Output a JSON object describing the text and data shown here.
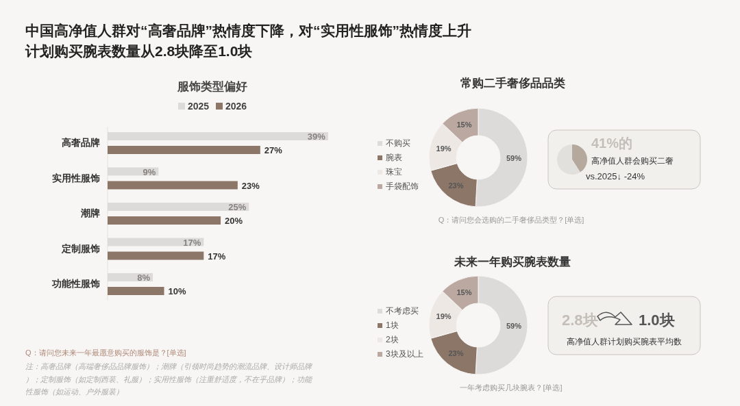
{
  "chart_data": [
    {
      "type": "other",
      "title": "中国高净值人群对“高奢品牌”热情度下降，对“实用性服饰”热情度上升",
      "subtitle": "计划购买腕表数量从2.8块降至1.0块"
    },
    {
      "type": "bar",
      "orientation": "horizontal",
      "title": "服饰类型偏好",
      "categories": [
        "高奢品牌",
        "实用性服饰",
        "潮牌",
        "定制服饰",
        "功能性服饰"
      ],
      "legend": "top",
      "series": [
        {
          "name": "2025",
          "color": "#dcdbd9",
          "values": [
            39,
            9,
            25,
            17,
            8
          ],
          "value_labels": [
            "39%",
            "9%",
            "25%",
            "17%",
            "8%"
          ]
        },
        {
          "name": "2026",
          "color": "#8c7668",
          "values": [
            27,
            23,
            20,
            17,
            10
          ],
          "value_labels": [
            "27%",
            "23%",
            "20%",
            "17%",
            "10%"
          ]
        }
      ],
      "annotations": [
        "Q：请问您未来一年最愿意购买的服饰是？[单选]",
        "注：高奢品牌（高端奢侈品品牌服饰）；潮牌（引领时尚趋势的潮流品牌、设计师品牌）；定制服饰（如定制西装、礼服）；实用性服饰（注重舒适度，不在乎品牌）；功能性服饰（如运动、户外服装）"
      ]
    },
    {
      "type": "donut",
      "title": "常购二手奢侈品品类",
      "categories": [
        "不购买",
        "腕表",
        "珠宝",
        "手袋配饰"
      ],
      "values": [
        59,
        23,
        19,
        15
      ],
      "value_labels": [
        "59%",
        "23%",
        "19%",
        "15%"
      ],
      "colors": [
        "#dcdbd9",
        "#8c7668",
        "#eee8e5",
        "#bba9a1"
      ],
      "legend": "left",
      "annotations": [
        "Q：请问您会选购的二手奢侈品类型？[单选]"
      ]
    },
    {
      "type": "pie",
      "categories": [
        null,
        null
      ],
      "values": [
        41,
        59
      ],
      "colors": [
        "#b5a99e",
        "#e2e0dc"
      ],
      "annotations": [
        "41%的",
        "高净值人群会购买二奢",
        "vs.2025↓ -24%"
      ]
    },
    {
      "type": "donut",
      "title": "未来一年购买腕表数量",
      "categories": [
        "不考虑买",
        "1块",
        "2块",
        "3块及以上"
      ],
      "values": [
        59,
        23,
        19,
        15
      ],
      "value_labels": [
        "59%",
        "23%",
        "19%",
        "15%"
      ],
      "colors": [
        "#dcdbd9",
        "#8c7668",
        "#eee8e5",
        "#bba9a1"
      ],
      "legend": "left",
      "annotations": [
        "一年考虑购买几块腕表？[单选]"
      ]
    },
    {
      "type": "other",
      "annotations": [
        "2.8块",
        "1.0块",
        "高净值人群计划购买腕表平均数"
      ]
    }
  ]
}
